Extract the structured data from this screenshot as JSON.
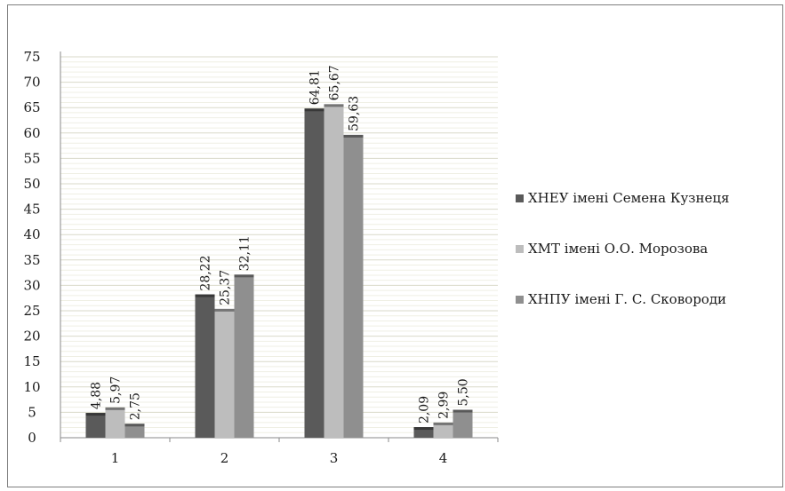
{
  "chart_data": {
    "type": "bar",
    "categories": [
      "1",
      "2",
      "3",
      "4"
    ],
    "series": [
      {
        "name": "ХНЕУ імені Семена Кузнеця",
        "values": [
          4.88,
          28.22,
          64.81,
          2.09
        ],
        "labels": [
          "4,88",
          "28,22",
          "64,81",
          "2,09"
        ],
        "color": "#5a5a5a"
      },
      {
        "name": "ХМТ імені О.О. Морозова",
        "values": [
          5.97,
          25.37,
          65.67,
          2.99
        ],
        "labels": [
          "5,97",
          "25,37",
          "65,67",
          "2,99"
        ],
        "color": "#bdbdbd"
      },
      {
        "name": "ХНПУ імені Г. С. Сковороди",
        "values": [
          2.75,
          32.11,
          59.63,
          5.5
        ],
        "labels": [
          "2,75",
          "32,11",
          "59,63",
          "5,50"
        ],
        "color": "#8f8f8f"
      }
    ],
    "ylim": [
      0,
      75
    ],
    "yticks": [
      "0",
      "5",
      "10",
      "15",
      "20",
      "25",
      "30",
      "35",
      "40",
      "45",
      "50",
      "55",
      "60",
      "65",
      "70",
      "75"
    ],
    "grid": true,
    "legend_position": "right",
    "title": "",
    "xlabel": "",
    "ylabel": ""
  }
}
